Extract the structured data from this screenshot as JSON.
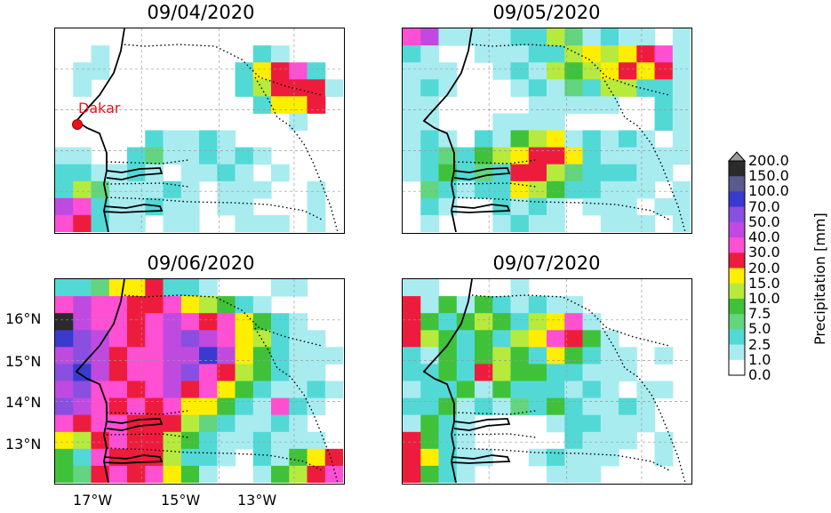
{
  "panels": [
    {
      "title": "09/04/2020"
    },
    {
      "title": "09/05/2020"
    },
    {
      "title": "09/06/2020"
    },
    {
      "title": "09/07/2020"
    }
  ],
  "city": {
    "name": "Dakar",
    "color": "#e8141c"
  },
  "lat_labels": [
    "16°N",
    "15°N",
    "14°N",
    "13°N"
  ],
  "lon_labels": [
    "17°W",
    "15°W",
    "13°W"
  ],
  "colorbar": {
    "title": "Precipitation [mm]",
    "levels": [
      "200.0",
      "150.0",
      "100.0",
      "70.0",
      "50.0",
      "40.0",
      "30.0",
      "20.0",
      "15.0",
      "10.0",
      "7.5",
      "5.0",
      "2.5",
      "1.0",
      "0.0"
    ],
    "colors": [
      "#2b2b2b",
      "#5a5a8c",
      "#3a3acf",
      "#8a4fe0",
      "#c04ae0",
      "#ff4fd2",
      "#ee1c3c",
      "#ffee00",
      "#b6ea3c",
      "#3fc23a",
      "#63d57f",
      "#52d9d6",
      "#a8ecf0",
      "#ffffff"
    ]
  }
}
